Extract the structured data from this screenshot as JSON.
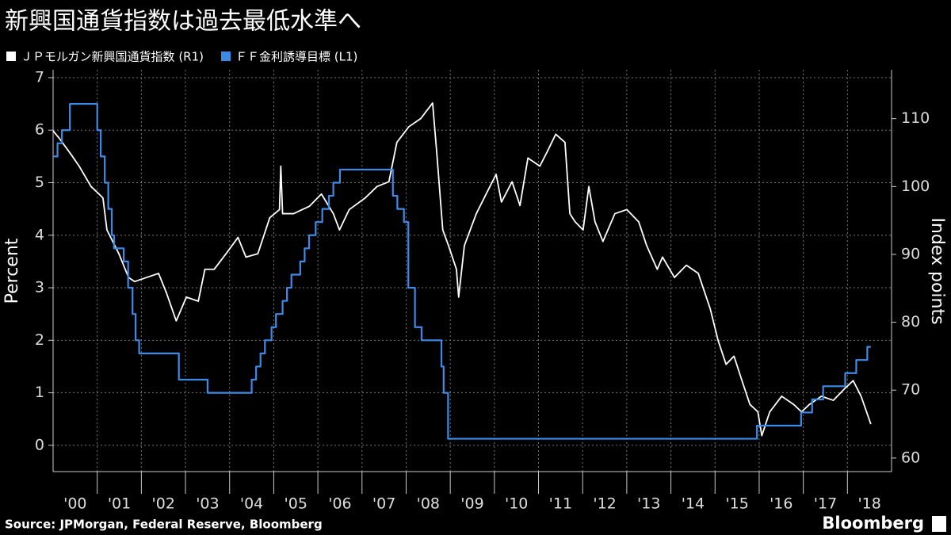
{
  "chart_data": {
    "type": "line",
    "title": "新興国通貨指数は過去最低水準へ",
    "ylabel": "Percent",
    "y2label": "Index points",
    "source": "Source: JPMorgan, Federal Reserve, Bloomberg",
    "brand": "Bloomberg",
    "xlim": [
      2000,
      2019
    ],
    "ylim": [
      -0.5,
      7.15
    ],
    "y2lim": [
      58,
      117.2
    ],
    "yticks": [
      0,
      1,
      2,
      3,
      4,
      5,
      6,
      7
    ],
    "y2ticks": [
      60,
      70,
      80,
      90,
      100,
      110
    ],
    "xticks": [
      {
        "value": 2000.5,
        "label": "'00"
      },
      {
        "value": 2001.5,
        "label": "'01"
      },
      {
        "value": 2002.5,
        "label": "'02"
      },
      {
        "value": 2003.5,
        "label": "'03"
      },
      {
        "value": 2004.5,
        "label": "'04"
      },
      {
        "value": 2005.5,
        "label": "'05"
      },
      {
        "value": 2006.5,
        "label": "'06"
      },
      {
        "value": 2007.5,
        "label": "'07"
      },
      {
        "value": 2008.5,
        "label": "'08"
      },
      {
        "value": 2009.5,
        "label": "'09"
      },
      {
        "value": 2010.5,
        "label": "'10"
      },
      {
        "value": 2011.5,
        "label": "'11"
      },
      {
        "value": 2012.5,
        "label": "'12"
      },
      {
        "value": 2013.5,
        "label": "'13"
      },
      {
        "value": 2014.5,
        "label": "'14"
      },
      {
        "value": 2015.5,
        "label": "'15"
      },
      {
        "value": 2016.5,
        "label": "'16"
      },
      {
        "value": 2017.5,
        "label": "'17"
      },
      {
        "value": 2018.5,
        "label": "'18"
      }
    ],
    "xgrid": [
      2001,
      2002,
      2003,
      2004,
      2005,
      2006,
      2007,
      2008,
      2009,
      2010,
      2011,
      2012,
      2013,
      2014,
      2015,
      2016,
      2017,
      2018
    ],
    "grid": true,
    "series": [
      {
        "name": "ＪＰモルガン新興国通貨指数 (R1)",
        "color": "#ffffff",
        "axis": "y2",
        "step": false,
        "x": [
          2000.0,
          2000.14,
          2000.41,
          2000.59,
          2000.86,
          2001.04,
          2001.13,
          2001.22,
          2001.49,
          2001.71,
          2001.85,
          2002.12,
          2002.39,
          2002.57,
          2002.79,
          2003.02,
          2003.29,
          2003.44,
          2003.65,
          2003.92,
          2004.19,
          2004.37,
          2004.64,
          2004.91,
          2005.13,
          2005.16,
          2005.2,
          2005.45,
          2005.81,
          2006.08,
          2006.35,
          2006.49,
          2006.71,
          2007.07,
          2007.34,
          2007.61,
          2007.79,
          2008.06,
          2008.33,
          2008.6,
          2008.69,
          2008.83,
          2008.96,
          2009.14,
          2009.19,
          2009.32,
          2009.59,
          2009.86,
          2010.04,
          2010.16,
          2010.4,
          2010.58,
          2010.76,
          2011.03,
          2011.21,
          2011.39,
          2011.6,
          2011.71,
          2011.83,
          2012.01,
          2012.14,
          2012.28,
          2012.46,
          2012.73,
          2013.0,
          2013.27,
          2013.45,
          2013.69,
          2013.81,
          2014.08,
          2014.35,
          2014.62,
          2014.89,
          2015.07,
          2015.25,
          2015.43,
          2015.61,
          2015.79,
          2015.97,
          2016.06,
          2016.24,
          2016.51,
          2016.78,
          2016.96,
          2017.14,
          2017.41,
          2017.68,
          2017.95,
          2018.13,
          2018.31,
          2018.53
        ],
        "values": [
          108.2,
          107.1,
          104.7,
          103,
          100,
          98.9,
          98.3,
          93.6,
          90.1,
          86.6,
          86,
          86.6,
          87.2,
          84.3,
          80.2,
          83.7,
          83.1,
          87.8,
          87.8,
          90.1,
          92.5,
          89.6,
          90.1,
          95.4,
          96.6,
          103,
          96,
          96,
          97.1,
          98.9,
          96,
          93.6,
          96.6,
          98.3,
          100,
          100.7,
          106.5,
          108.8,
          110,
          112.3,
          105.3,
          93.6,
          91.3,
          87.8,
          83.7,
          91.3,
          96,
          99.5,
          101.8,
          97.7,
          100.7,
          97.2,
          104.2,
          103,
          105.3,
          107.7,
          106.5,
          96,
          94.8,
          93.6,
          100,
          94.8,
          91.9,
          96,
          96.6,
          94.8,
          91.3,
          87.8,
          89.6,
          86.6,
          88.4,
          87.2,
          82,
          77.3,
          73.8,
          75,
          71.4,
          67.9,
          66.8,
          63.3,
          66.8,
          69.1,
          67.9,
          66.8,
          67.9,
          69.1,
          68.5,
          70.3,
          71.4,
          69.1,
          65
        ]
      },
      {
        "name": "ＦＦ金利誘導目標 (L1)",
        "color": "#3d8be8",
        "axis": "y",
        "step": true,
        "x": [
          2000.0,
          2000.1,
          2000.2,
          2000.38,
          2001.0,
          2001.08,
          2001.17,
          2001.25,
          2001.33,
          2001.38,
          2001.6,
          2001.7,
          2001.8,
          2001.87,
          2001.95,
          2002.85,
          2003.5,
          2004.5,
          2004.6,
          2004.7,
          2004.8,
          2004.95,
          2005.05,
          2005.2,
          2005.3,
          2005.4,
          2005.6,
          2005.7,
          2005.8,
          2005.95,
          2006.1,
          2006.25,
          2006.35,
          2006.5,
          2007.7,
          2007.8,
          2007.95,
          2008.05,
          2008.2,
          2008.35,
          2008.8,
          2008.85,
          2008.95,
          2015.95,
          2016.95,
          2017.2,
          2017.45,
          2017.95,
          2018.2,
          2018.45,
          2018.53
        ],
        "values": [
          5.5,
          5.75,
          6.0,
          6.5,
          6.0,
          5.5,
          5.0,
          4.5,
          4.0,
          3.75,
          3.5,
          3.0,
          2.5,
          2.0,
          1.75,
          1.25,
          1.0,
          1.25,
          1.5,
          1.75,
          2.0,
          2.25,
          2.5,
          2.75,
          3.0,
          3.25,
          3.5,
          3.75,
          4.0,
          4.25,
          4.5,
          4.75,
          5.0,
          5.25,
          4.75,
          4.5,
          4.25,
          3.0,
          2.25,
          2.0,
          1.5,
          1.0,
          0.125,
          0.375,
          0.625,
          0.875,
          1.125,
          1.375,
          1.625,
          1.875,
          1.875
        ]
      }
    ]
  }
}
